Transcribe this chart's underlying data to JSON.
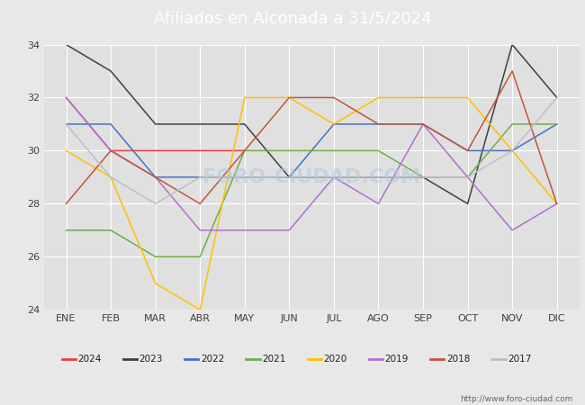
{
  "title": "Afiliados en Alconada a 31/5/2024",
  "header_bg": "#5b9bd5",
  "ylim": [
    24,
    34
  ],
  "yticks": [
    24,
    26,
    28,
    30,
    32,
    34
  ],
  "months": [
    "ENE",
    "FEB",
    "MAR",
    "ABR",
    "MAY",
    "JUN",
    "JUL",
    "AGO",
    "SEP",
    "OCT",
    "NOV",
    "DIC"
  ],
  "series": {
    "2024": {
      "color": "#e8413c",
      "data": [
        32,
        30,
        30,
        30,
        30,
        null,
        null,
        null,
        null,
        null,
        null,
        null
      ]
    },
    "2023": {
      "color": "#404040",
      "data": [
        34,
        33,
        31,
        31,
        31,
        29,
        29,
        29,
        29,
        28,
        34,
        32
      ]
    },
    "2022": {
      "color": "#4472c4",
      "data": [
        31,
        31,
        29,
        29,
        29,
        29,
        31,
        31,
        31,
        30,
        30,
        31
      ]
    },
    "2021": {
      "color": "#70ad47",
      "data": [
        27,
        27,
        26,
        26,
        30,
        30,
        30,
        30,
        29,
        29,
        31,
        31
      ]
    },
    "2020": {
      "color": "#ffc000",
      "data": [
        30,
        29,
        25,
        24,
        32,
        32,
        31,
        32,
        32,
        32,
        30,
        28
      ]
    },
    "2019": {
      "color": "#b16fd0",
      "data": [
        32,
        30,
        29,
        27,
        27,
        27,
        29,
        28,
        31,
        29,
        27,
        28
      ]
    },
    "2018": {
      "color": "#c0563a",
      "data": [
        28,
        30,
        29,
        28,
        30,
        32,
        32,
        31,
        31,
        30,
        33,
        28
      ]
    },
    "2017": {
      "color": "#bfbfbf",
      "data": [
        31,
        29,
        28,
        29,
        29,
        29,
        29,
        29,
        29,
        29,
        30,
        32
      ]
    }
  },
  "legend_order": [
    "2024",
    "2023",
    "2022",
    "2021",
    "2020",
    "2019",
    "2018",
    "2017"
  ],
  "background_color": "#e8e8e8",
  "plot_bg": "#e0e0e0",
  "grid_color": "#ffffff",
  "footer_text": "http://www.foro-ciudad.com"
}
